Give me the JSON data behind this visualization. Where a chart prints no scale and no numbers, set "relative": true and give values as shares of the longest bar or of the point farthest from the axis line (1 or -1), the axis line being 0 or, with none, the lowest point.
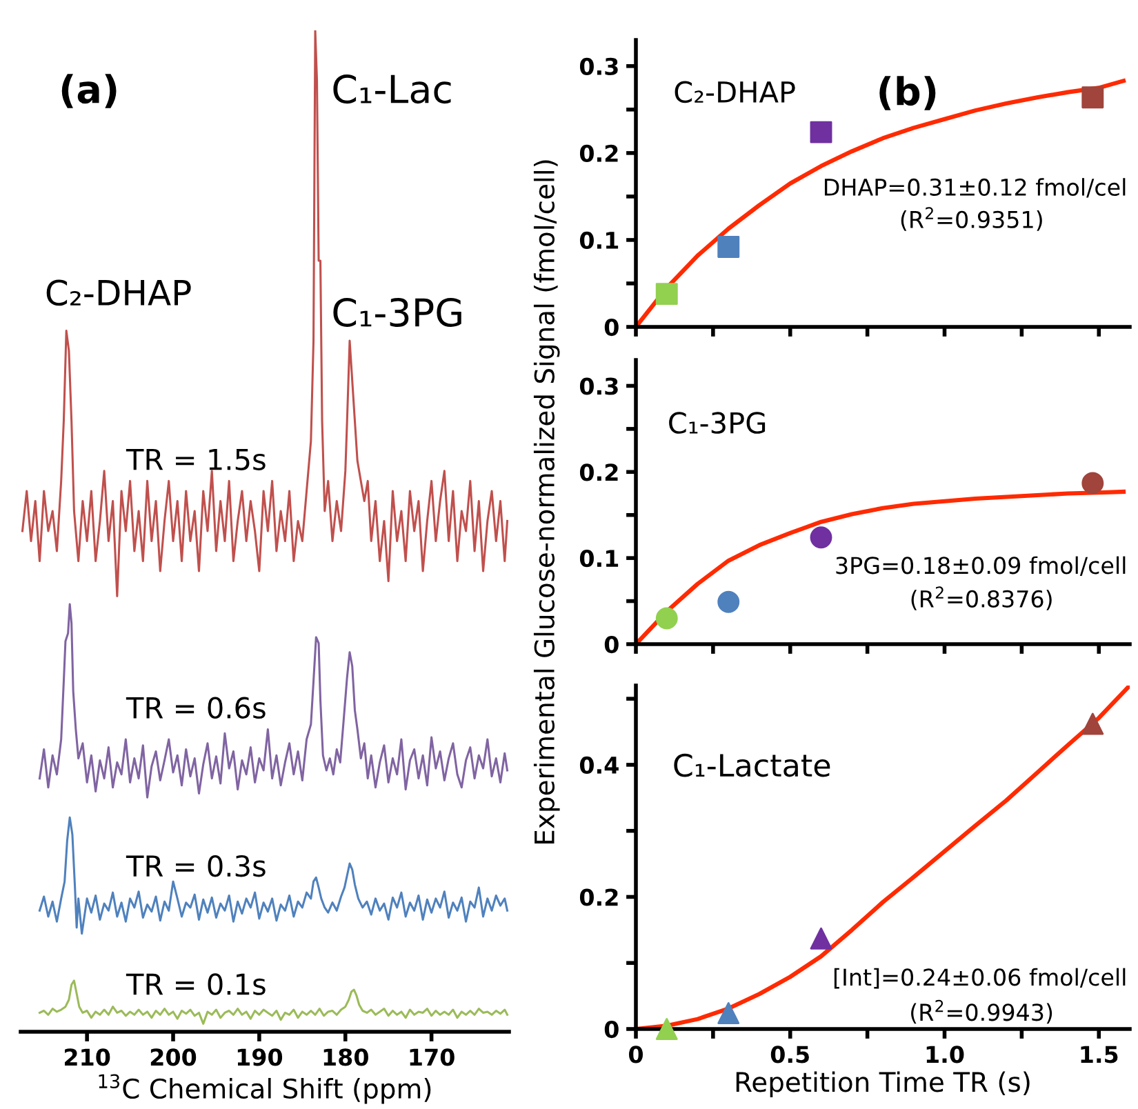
{
  "chart_data": [
    {
      "type": "line",
      "relative": true,
      "xlim": [
        217.7,
        161
      ],
      "xticks": [
        210,
        200,
        190,
        180,
        170
      ],
      "xlabel": "$^{13}$C Chemical Shift (ppm)",
      "annotations": [
        "(a)",
        "C₂-DHAP",
        "C₁-Lac",
        "C₁-3PG",
        "TR = 1.5s",
        "TR = 0.6s",
        "TR = 0.3s",
        "TR = 0.1s"
      ],
      "series": [
        {
          "color": "#c0504d",
          "x": [
            217.5,
            217,
            216.5,
            216,
            215.5,
            215,
            214.5,
            214,
            213.5,
            213,
            212.7,
            212.4,
            212.1,
            211.8,
            211.5,
            211,
            210.5,
            210,
            209.5,
            209,
            208.5,
            208,
            207.5,
            207,
            206.5,
            206,
            205.5,
            205,
            204.5,
            204,
            203.5,
            203,
            202.5,
            202,
            201.5,
            201,
            200.5,
            200,
            199.5,
            199,
            198.5,
            198,
            197.5,
            197,
            196.5,
            196,
            195.5,
            195,
            194.5,
            194,
            193.5,
            193,
            192.5,
            192,
            191.5,
            191,
            190.5,
            190,
            189.5,
            189,
            188.5,
            188,
            187.5,
            187,
            186.5,
            186,
            185.5,
            185,
            184.5,
            184,
            183.7,
            183.5,
            183.3,
            183.1,
            182.9,
            182.7,
            182.4,
            182,
            181.5,
            181,
            180.5,
            180,
            179.8,
            179.5,
            179.2,
            178.9,
            178.6,
            178.2,
            177.8,
            177.4,
            177,
            176.5,
            176,
            175.5,
            175,
            174.5,
            174,
            173.5,
            173,
            172.5,
            172,
            171.5,
            171,
            170.5,
            170,
            169.5,
            169,
            168.5,
            168,
            167.5,
            167,
            166.5,
            166,
            165.5,
            165,
            164.5,
            164,
            163.5,
            163,
            162.5,
            162,
            161.5,
            161.2
          ],
          "values": [
            0.5,
            0.54,
            0.49,
            0.53,
            0.47,
            0.54,
            0.5,
            0.52,
            0.48,
            0.55,
            0.61,
            0.7,
            0.68,
            0.61,
            0.52,
            0.47,
            0.53,
            0.49,
            0.54,
            0.47,
            0.51,
            0.56,
            0.49,
            0.53,
            0.435,
            0.54,
            0.5,
            0.55,
            0.48,
            0.52,
            0.47,
            0.55,
            0.49,
            0.53,
            0.46,
            0.51,
            0.55,
            0.49,
            0.53,
            0.47,
            0.54,
            0.49,
            0.52,
            0.46,
            0.54,
            0.5,
            0.56,
            0.48,
            0.53,
            0.49,
            0.55,
            0.47,
            0.51,
            0.54,
            0.49,
            0.53,
            0.5,
            0.46,
            0.54,
            0.5,
            0.55,
            0.48,
            0.52,
            0.49,
            0.54,
            0.47,
            0.51,
            0.49,
            0.54,
            0.59,
            0.69,
            1.0,
            0.95,
            0.77,
            0.77,
            0.61,
            0.52,
            0.55,
            0.49,
            0.53,
            0.5,
            0.56,
            0.61,
            0.69,
            0.65,
            0.61,
            0.57,
            0.55,
            0.53,
            0.55,
            0.49,
            0.53,
            0.47,
            0.51,
            0.45,
            0.54,
            0.49,
            0.52,
            0.47,
            0.54,
            0.5,
            0.53,
            0.46,
            0.51,
            0.55,
            0.49,
            0.53,
            0.56,
            0.49,
            0.54,
            0.47,
            0.52,
            0.5,
            0.55,
            0.48,
            0.53,
            0.46,
            0.51,
            0.54,
            0.49,
            0.53,
            0.47,
            0.51
          ]
        },
        {
          "color": "#8064a2",
          "x": [
            215.5,
            215,
            214.5,
            214,
            213.5,
            213,
            212.7,
            212.5,
            212.2,
            212,
            211.8,
            211.6,
            211.3,
            211,
            210.5,
            210,
            209.5,
            209,
            208.5,
            208,
            207.5,
            207,
            206.5,
            206,
            205.5,
            205,
            204.5,
            204,
            203.5,
            203,
            202.5,
            202,
            201.5,
            201,
            200.5,
            200,
            199.5,
            199,
            198.5,
            198,
            197.5,
            197,
            196.5,
            196,
            195.5,
            195,
            194.5,
            194,
            193.5,
            193,
            192.5,
            192,
            191.5,
            191,
            190.5,
            190,
            189.5,
            189,
            188.5,
            188,
            187.5,
            187,
            186.5,
            186,
            185.5,
            185,
            184.5,
            184,
            183.7,
            183.4,
            183.1,
            182.9,
            182.6,
            182.2,
            181.8,
            181.4,
            181,
            180.6,
            180.2,
            179.8,
            179.5,
            179.2,
            178.9,
            178.6,
            178.2,
            177.8,
            177.4,
            177,
            176.5,
            176,
            175.5,
            175,
            174.5,
            174,
            173.5,
            173,
            172.5,
            172,
            171.5,
            171,
            170.5,
            170,
            169.5,
            169,
            168.5,
            168,
            167.5,
            167,
            166.5,
            166,
            165.5,
            165,
            164.5,
            164,
            163.5,
            163,
            162.5,
            162,
            161.5,
            161.2
          ],
          "values": [
            0.253,
            0.282,
            0.244,
            0.276,
            0.257,
            0.292,
            0.35,
            0.39,
            0.398,
            0.427,
            0.408,
            0.34,
            0.302,
            0.273,
            0.288,
            0.249,
            0.276,
            0.24,
            0.271,
            0.253,
            0.284,
            0.244,
            0.269,
            0.257,
            0.292,
            0.249,
            0.273,
            0.253,
            0.286,
            0.234,
            0.265,
            0.28,
            0.251,
            0.271,
            0.292,
            0.259,
            0.276,
            0.246,
            0.282,
            0.255,
            0.273,
            0.238,
            0.267,
            0.288,
            0.253,
            0.275,
            0.248,
            0.298,
            0.263,
            0.28,
            0.242,
            0.271,
            0.257,
            0.284,
            0.249,
            0.273,
            0.261,
            0.302,
            0.253,
            0.276,
            0.246,
            0.269,
            0.288,
            0.257,
            0.28,
            0.251,
            0.292,
            0.307,
            0.35,
            0.394,
            0.388,
            0.331,
            0.276,
            0.261,
            0.273,
            0.257,
            0.282,
            0.269,
            0.311,
            0.354,
            0.379,
            0.365,
            0.321,
            0.302,
            0.273,
            0.288,
            0.253,
            0.276,
            0.244,
            0.269,
            0.286,
            0.249,
            0.273,
            0.257,
            0.292,
            0.242,
            0.271,
            0.282,
            0.253,
            0.276,
            0.246,
            0.294,
            0.263,
            0.28,
            0.251,
            0.273,
            0.288,
            0.257,
            0.244,
            0.271,
            0.284,
            0.253,
            0.276,
            0.263,
            0.292,
            0.255,
            0.273,
            0.249,
            0.278,
            0.261
          ]
        },
        {
          "color": "#4f81bd",
          "x": [
            215.5,
            215,
            214.5,
            214,
            213.5,
            213,
            212.6,
            212.3,
            212,
            211.7,
            211.4,
            211.2,
            211,
            210.6,
            210,
            209.5,
            209,
            208.5,
            208,
            207.5,
            207,
            206.5,
            206,
            205.5,
            205,
            204.5,
            204,
            203.5,
            203,
            202.5,
            202,
            201.5,
            201,
            200.5,
            200,
            199.5,
            199,
            198.5,
            198,
            197.5,
            197,
            196.5,
            196,
            195.5,
            195,
            194.5,
            194,
            193.5,
            193,
            192.5,
            192,
            191.5,
            191,
            190.5,
            190,
            189.5,
            189,
            188.5,
            188,
            187.5,
            187,
            186.5,
            186,
            185.5,
            185,
            184.5,
            184,
            183.7,
            183.4,
            183.1,
            182.8,
            182.4,
            182,
            181.5,
            181,
            180.5,
            180.1,
            179.8,
            179.5,
            179.2,
            178.9,
            178.5,
            178,
            177.5,
            177,
            176.5,
            176,
            175.5,
            175,
            174.5,
            174,
            173.5,
            173,
            172.5,
            172,
            171.5,
            171,
            170.5,
            170,
            169.5,
            169,
            168.5,
            168,
            167.5,
            167,
            166.5,
            166,
            165.5,
            165,
            164.5,
            164,
            163.5,
            163,
            162.5,
            162,
            161.5,
            161.2
          ],
          "values": [
            0.121,
            0.135,
            0.115,
            0.13,
            0.11,
            0.133,
            0.15,
            0.191,
            0.214,
            0.197,
            0.144,
            0.104,
            0.133,
            0.098,
            0.133,
            0.119,
            0.136,
            0.112,
            0.128,
            0.121,
            0.139,
            0.115,
            0.129,
            0.11,
            0.133,
            0.124,
            0.14,
            0.114,
            0.127,
            0.12,
            0.135,
            0.111,
            0.13,
            0.121,
            0.15,
            0.133,
            0.115,
            0.129,
            0.124,
            0.137,
            0.112,
            0.132,
            0.119,
            0.134,
            0.114,
            0.128,
            0.121,
            0.136,
            0.11,
            0.13,
            0.118,
            0.133,
            0.124,
            0.139,
            0.113,
            0.129,
            0.12,
            0.133,
            0.111,
            0.127,
            0.121,
            0.136,
            0.115,
            0.13,
            0.124,
            0.139,
            0.133,
            0.15,
            0.154,
            0.144,
            0.133,
            0.124,
            0.119,
            0.129,
            0.121,
            0.135,
            0.144,
            0.156,
            0.168,
            0.162,
            0.147,
            0.133,
            0.124,
            0.13,
            0.117,
            0.133,
            0.121,
            0.128,
            0.112,
            0.134,
            0.124,
            0.139,
            0.115,
            0.129,
            0.121,
            0.136,
            0.112,
            0.132,
            0.119,
            0.133,
            0.124,
            0.14,
            0.114,
            0.129,
            0.121,
            0.134,
            0.11,
            0.13,
            0.124,
            0.144,
            0.115,
            0.133,
            0.121,
            0.136,
            0.126,
            0.133,
            0.121
          ]
        },
        {
          "color": "#9bbb59",
          "x": [
            215.5,
            215,
            214.5,
            214,
            213.5,
            213,
            212.5,
            212.1,
            211.8,
            211.5,
            211.2,
            210.9,
            210.5,
            210,
            209.5,
            209,
            208.5,
            208,
            207.5,
            207,
            206.5,
            206,
            205.5,
            205,
            204.5,
            204,
            203.5,
            203,
            202.5,
            202,
            201.5,
            201,
            200.5,
            200,
            199.5,
            199,
            198.5,
            198,
            197.5,
            197,
            196.5,
            196,
            195.5,
            195,
            194.5,
            194,
            193.5,
            193,
            192.5,
            192,
            191.5,
            191,
            190.5,
            190,
            189.5,
            189,
            188.5,
            188,
            187.5,
            187,
            186.5,
            186,
            185.5,
            185,
            184.5,
            184,
            183.5,
            183,
            182.5,
            182,
            181.5,
            181,
            180.5,
            180,
            179.6,
            179.3,
            179,
            178.7,
            178.4,
            178,
            177.5,
            177,
            176.5,
            176,
            175.5,
            175,
            174.5,
            174,
            173.5,
            173,
            172.5,
            172,
            171.5,
            171,
            170.5,
            170,
            169.5,
            169,
            168.5,
            168,
            167.5,
            167,
            166.5,
            166,
            165.5,
            165,
            164.5,
            164,
            163.5,
            163,
            162.5,
            162,
            161.5,
            161.2
          ],
          "values": [
            0.019,
            0.021,
            0.017,
            0.023,
            0.02,
            0.022,
            0.025,
            0.032,
            0.047,
            0.051,
            0.038,
            0.025,
            0.019,
            0.021,
            0.014,
            0.02,
            0.017,
            0.022,
            0.017,
            0.025,
            0.019,
            0.021,
            0.016,
            0.02,
            0.017,
            0.022,
            0.017,
            0.02,
            0.014,
            0.021,
            0.017,
            0.023,
            0.017,
            0.02,
            0.013,
            0.021,
            0.018,
            0.022,
            0.016,
            0.019,
            0.008,
            0.02,
            0.017,
            0.022,
            0.014,
            0.019,
            0.021,
            0.017,
            0.023,
            0.017,
            0.02,
            0.013,
            0.021,
            0.017,
            0.022,
            0.019,
            0.016,
            0.021,
            0.012,
            0.019,
            0.017,
            0.022,
            0.014,
            0.02,
            0.017,
            0.021,
            0.017,
            0.023,
            0.016,
            0.02,
            0.021,
            0.017,
            0.022,
            0.025,
            0.032,
            0.04,
            0.042,
            0.036,
            0.027,
            0.021,
            0.019,
            0.022,
            0.017,
            0.02,
            0.023,
            0.016,
            0.021,
            0.017,
            0.02,
            0.014,
            0.022,
            0.017,
            0.02,
            0.019,
            0.023,
            0.016,
            0.021,
            0.017,
            0.02,
            0.017,
            0.022,
            0.014,
            0.02,
            0.017,
            0.021,
            0.017,
            0.023,
            0.019,
            0.02,
            0.017,
            0.021,
            0.018,
            0.022,
            0.017
          ]
        }
      ]
    },
    {
      "type": "scatter",
      "xlim": [
        0,
        1.6
      ],
      "ylim": [
        0,
        0.33
      ],
      "tick_labels": "y",
      "xticks": [
        0,
        {
          "value": 0.25,
          "label": null
        },
        0.5,
        {
          "value": 0.75,
          "label": null
        },
        1.0,
        {
          "value": 1.25,
          "label": null
        },
        1.5
      ],
      "yticks": [
        0,
        {
          "value": 0.05,
          "label": null
        },
        0.1,
        {
          "value": 0.15,
          "label": null
        },
        0.2,
        {
          "value": 0.25,
          "label": null
        },
        0.3
      ],
      "annotations": [
        "C₂-DHAP",
        "(b)",
        "DHAP=0.31±0.12 fmol/cel",
        "(R$^{2}$=0.9351)"
      ],
      "series": [
        {
          "type": "line",
          "color": "#ff2a00",
          "x": [
            0,
            0.1,
            0.2,
            0.3,
            0.4,
            0.5,
            0.6,
            0.7,
            0.8,
            0.9,
            1.0,
            1.1,
            1.2,
            1.3,
            1.4,
            1.5,
            1.58
          ],
          "values": [
            0,
            0.045,
            0.082,
            0.113,
            0.14,
            0.165,
            0.185,
            0.202,
            0.217,
            0.229,
            0.239,
            0.249,
            0.257,
            0.264,
            0.27,
            0.275,
            0.283
          ]
        },
        {
          "type": "scatter",
          "marker": "square",
          "x": [
            0.1,
            0.3,
            0.6,
            1.48
          ],
          "colors": [
            "#92d050",
            "#4f81bd",
            "#7030a0",
            "#a0443c"
          ],
          "values": [
            0.038,
            0.092,
            0.224,
            0.264
          ]
        }
      ]
    },
    {
      "type": "scatter",
      "xlim": [
        0,
        1.6
      ],
      "ylim": [
        0,
        0.33
      ],
      "tick_labels": "y",
      "ylabel": "Experimental Glucose-normalized Signal (fmol/cell)",
      "xticks": [
        0,
        {
          "value": 0.25,
          "label": null
        },
        0.5,
        {
          "value": 0.75,
          "label": null
        },
        1.0,
        {
          "value": 1.25,
          "label": null
        },
        1.5
      ],
      "yticks": [
        0,
        {
          "value": 0.05,
          "label": null
        },
        0.1,
        {
          "value": 0.15,
          "label": null
        },
        0.2,
        {
          "value": 0.25,
          "label": null
        },
        0.3
      ],
      "annotations": [
        "C₁-3PG",
        "3PG=0.18±0.09 fmol/cell",
        "(R$^{2}$=0.8376)"
      ],
      "series": [
        {
          "type": "line",
          "color": "#ff2a00",
          "x": [
            0,
            0.1,
            0.2,
            0.3,
            0.4,
            0.5,
            0.6,
            0.7,
            0.8,
            0.9,
            1.0,
            1.1,
            1.2,
            1.3,
            1.4,
            1.5,
            1.58
          ],
          "values": [
            0,
            0.038,
            0.07,
            0.097,
            0.115,
            0.129,
            0.142,
            0.151,
            0.158,
            0.163,
            0.166,
            0.169,
            0.171,
            0.173,
            0.175,
            0.176,
            0.177
          ]
        },
        {
          "type": "scatter",
          "marker": "circle",
          "x": [
            0.1,
            0.3,
            0.6,
            1.48
          ],
          "colors": [
            "#92d050",
            "#4f81bd",
            "#7030a0",
            "#a0443c"
          ],
          "values": [
            0.03,
            0.049,
            0.124,
            0.187
          ]
        }
      ]
    },
    {
      "type": "scatter",
      "xlim": [
        0,
        1.6
      ],
      "ylim": [
        0,
        0.52
      ],
      "xlabel": "Repetition Time TR (s)",
      "xticks": [
        0,
        {
          "value": 0.25,
          "label": null
        },
        0.5,
        {
          "value": 0.75,
          "label": null
        },
        {
          "value": 1.0,
          "label": "1.0"
        },
        {
          "value": 1.25,
          "label": null
        },
        1.5
      ],
      "yticks": [
        0,
        {
          "value": 0.1,
          "label": null
        },
        0.2,
        {
          "value": 0.3,
          "label": null
        },
        0.4,
        {
          "value": 0.5,
          "label": null
        }
      ],
      "annotations": [
        "C₁-Lactate",
        "[Int]=0.24±0.06 fmol/cell",
        "(R$^{2}$=0.9943)"
      ],
      "series": [
        {
          "type": "line",
          "color": "#ff2a00",
          "x": [
            0,
            0.1,
            0.2,
            0.3,
            0.4,
            0.5,
            0.6,
            0.7,
            0.8,
            0.9,
            1.0,
            1.1,
            1.2,
            1.3,
            1.4,
            1.5,
            1.6
          ],
          "values": [
            0,
            0.005,
            0.015,
            0.031,
            0.053,
            0.079,
            0.11,
            0.15,
            0.192,
            0.23,
            0.269,
            0.308,
            0.346,
            0.388,
            0.43,
            0.471,
            0.52
          ]
        },
        {
          "type": "scatter",
          "marker": "triangle",
          "x": [
            0.1,
            0.3,
            0.6,
            1.48
          ],
          "colors": [
            "#92d050",
            "#4f81bd",
            "#7030a0",
            "#a0443c"
          ],
          "values": [
            0.0,
            0.024,
            0.137,
            0.462
          ]
        }
      ]
    }
  ]
}
